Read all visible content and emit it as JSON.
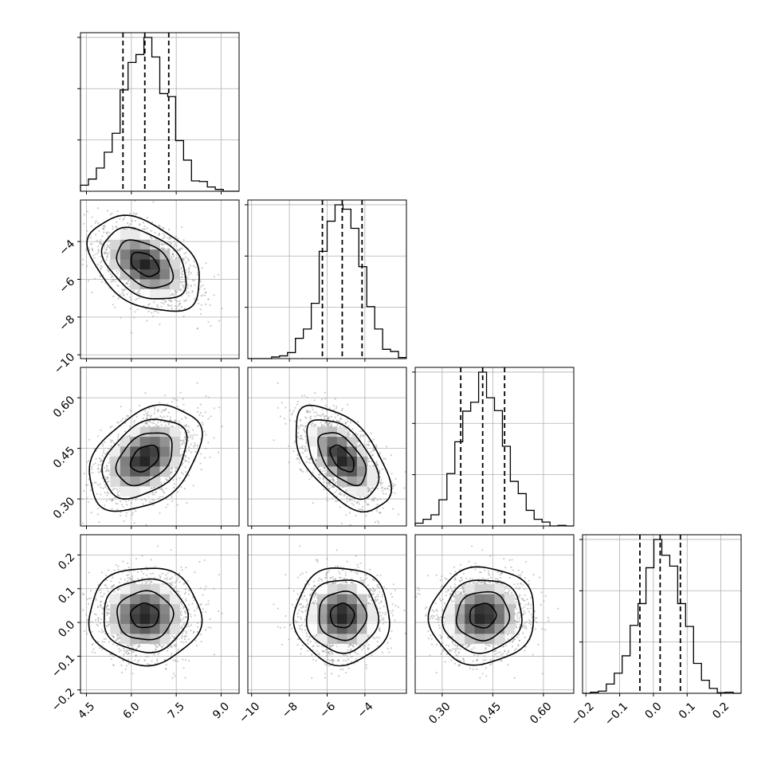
{
  "chart_data": {
    "type": "corner",
    "title": "",
    "parameters": [
      {
        "index": 0,
        "label": "",
        "range": [
          4.3,
          9.6
        ],
        "ticks": [
          4.5,
          6.0,
          7.5,
          9.0
        ],
        "tick_labels": [
          "4.5",
          "6.0",
          "7.5",
          "9.0"
        ],
        "mean": 6.45,
        "std": 0.78,
        "quantiles": [
          5.72,
          6.45,
          7.25
        ]
      },
      {
        "index": 1,
        "label": "",
        "range": [
          -10.2,
          -1.8
        ],
        "ticks": [
          -10,
          -8,
          -6,
          -4
        ],
        "tick_labels": [
          "−10",
          "−8",
          "−6",
          "−4"
        ],
        "mean": -5.2,
        "std": 1.05,
        "quantiles": [
          -6.25,
          -5.2,
          -4.15
        ]
      },
      {
        "index": 2,
        "label": "",
        "range": [
          0.22,
          0.69
        ],
        "ticks": [
          0.3,
          0.45,
          0.6
        ],
        "tick_labels": [
          "0.30",
          "0.45",
          "0.60"
        ],
        "mean": 0.42,
        "std": 0.065,
        "quantiles": [
          0.355,
          0.42,
          0.485
        ]
      },
      {
        "index": 3,
        "label": "",
        "range": [
          -0.21,
          0.26
        ],
        "ticks": [
          -0.2,
          -0.1,
          0.0,
          0.1,
          0.2
        ],
        "tick_labels": [
          "−0.2",
          "−0.1",
          "0.0",
          "0.1",
          "0.2"
        ],
        "mean": 0.02,
        "std": 0.06,
        "quantiles": [
          -0.04,
          0.02,
          0.08
        ]
      }
    ],
    "correlations": [
      {
        "pair": [
          0,
          1
        ],
        "r": -0.4
      },
      {
        "pair": [
          0,
          2
        ],
        "r": 0.38
      },
      {
        "pair": [
          1,
          2
        ],
        "r": -0.55
      },
      {
        "pair": [
          0,
          3
        ],
        "r": 0.0
      },
      {
        "pair": [
          1,
          3
        ],
        "r": 0.0
      },
      {
        "pair": [
          2,
          3
        ],
        "r": 0.05
      }
    ],
    "contour_levels_sigma": [
      0.5,
      1.0,
      1.5,
      2.0
    ],
    "histogram_bins": 20,
    "grid": true,
    "colors": {
      "line": "#000000",
      "density": "#000000",
      "samples": "#9a9a9a",
      "grid": "#b0b0b0"
    }
  }
}
